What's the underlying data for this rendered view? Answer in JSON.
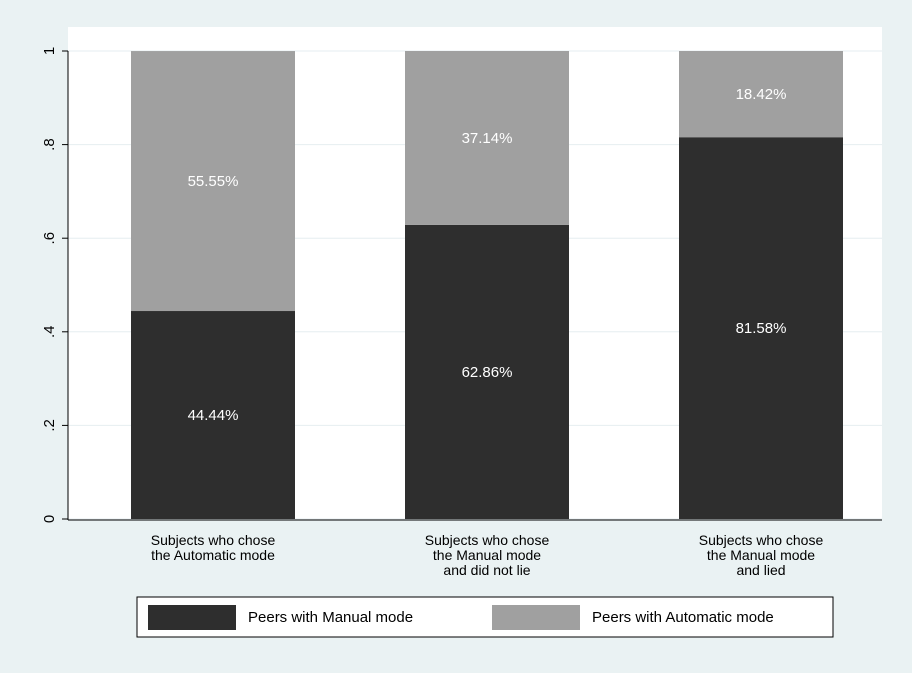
{
  "chart_data": {
    "type": "bar",
    "stacked": true,
    "categories": [
      [
        "Subjects who chose",
        "the Automatic mode"
      ],
      [
        "Subjects who chose",
        "the Manual mode",
        "and did not lie"
      ],
      [
        "Subjects who chose",
        "the Manual mode",
        "and lied"
      ]
    ],
    "series": [
      {
        "name": "Peers with Manual mode",
        "color": "#2e2e2e",
        "values": [
          0.4444,
          0.6286,
          0.8158
        ],
        "labels": [
          "44.44%",
          "62.86%",
          "81.58%"
        ]
      },
      {
        "name": "Peers with Automatic mode",
        "color": "#a0a0a0",
        "values": [
          0.5555,
          0.3714,
          0.1842
        ],
        "labels": [
          "55.55%",
          "37.14%",
          "18.42%"
        ]
      }
    ],
    "y_ticks": [
      0,
      0.2,
      0.4,
      0.6,
      0.8,
      1
    ],
    "y_tick_labels": [
      "0",
      ".2",
      ".4",
      ".6",
      ".8",
      "1"
    ],
    "ylim": [
      0,
      1
    ],
    "grid": true,
    "legend_position": "bottom",
    "title": "",
    "xlabel": "",
    "ylabel": ""
  },
  "colors": {
    "page_background": "#eaf2f3",
    "plot_background": "#ffffff",
    "gridline": "#e6eef0",
    "axis": "#000000",
    "segment_label": "#ffffff"
  }
}
